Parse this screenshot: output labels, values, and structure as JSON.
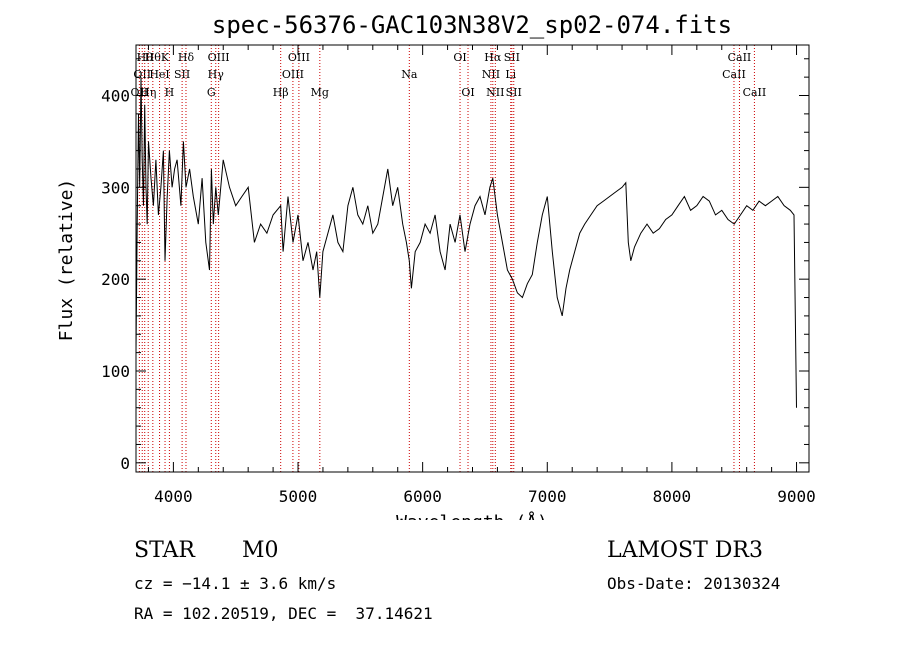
{
  "chart_data": {
    "type": "line",
    "title": "spec-56376-GAC103N38V2_sp02-074.fits",
    "xlabel": "Wavelength (Å)",
    "ylabel": "Flux (relative)",
    "xlim": [
      3700,
      9100
    ],
    "ylim": [
      -10,
      455
    ],
    "x_ticks": [
      4000,
      5000,
      6000,
      7000,
      8000,
      9000
    ],
    "y_ticks": [
      0,
      100,
      200,
      300,
      400
    ],
    "x_tick_labels": [
      "4000",
      "5000",
      "6000",
      "7000",
      "8000",
      "9000"
    ],
    "y_tick_labels": [
      "0",
      "100",
      "200",
      "300",
      "400"
    ],
    "grid": false,
    "line_color": "#000000",
    "marker_color": "#cc0000",
    "series": [
      {
        "x": [
          3700,
          3710,
          3720,
          3730,
          3740,
          3750,
          3760,
          3770,
          3780,
          3790,
          3800,
          3820,
          3840,
          3860,
          3880,
          3900,
          3920,
          3933,
          3950,
          3968,
          3990,
          4010,
          4030,
          4060,
          4080,
          4101,
          4130,
          4160,
          4200,
          4230,
          4260,
          4290,
          4305,
          4320,
          4340,
          4360,
          4400,
          4450,
          4500,
          4550,
          4600,
          4650,
          4700,
          4750,
          4800,
          4861,
          4880,
          4920,
          4960,
          5000,
          5040,
          5080,
          5120,
          5150,
          5175,
          5200,
          5240,
          5280,
          5320,
          5360,
          5400,
          5440,
          5480,
          5520,
          5560,
          5600,
          5640,
          5680,
          5720,
          5760,
          5800,
          5840,
          5870,
          5893,
          5910,
          5940,
          5980,
          6020,
          6060,
          6100,
          6140,
          6180,
          6220,
          6260,
          6300,
          6340,
          6380,
          6420,
          6460,
          6500,
          6540,
          6563,
          6600,
          6640,
          6680,
          6720,
          6760,
          6800,
          6840,
          6880,
          6920,
          6960,
          7000,
          7040,
          7080,
          7120,
          7150,
          7180,
          7220,
          7260,
          7300,
          7350,
          7400,
          7450,
          7500,
          7550,
          7600,
          7630,
          7650,
          7670,
          7700,
          7750,
          7800,
          7850,
          7900,
          7950,
          8000,
          8050,
          8100,
          8150,
          8200,
          8250,
          8300,
          8350,
          8400,
          8450,
          8500,
          8550,
          8600,
          8650,
          8700,
          8750,
          8800,
          8850,
          8900,
          8950,
          8980,
          9000
        ],
        "y": [
          120,
          260,
          380,
          300,
          420,
          330,
          280,
          390,
          300,
          260,
          350,
          310,
          280,
          330,
          270,
          300,
          340,
          220,
          290,
          340,
          300,
          320,
          330,
          280,
          350,
          300,
          320,
          290,
          260,
          310,
          240,
          210,
          320,
          260,
          300,
          270,
          330,
          300,
          280,
          290,
          300,
          240,
          260,
          250,
          270,
          280,
          230,
          290,
          240,
          270,
          220,
          240,
          210,
          230,
          180,
          230,
          250,
          270,
          240,
          230,
          280,
          300,
          270,
          260,
          280,
          250,
          260,
          290,
          320,
          280,
          300,
          260,
          240,
          220,
          190,
          230,
          240,
          260,
          250,
          270,
          230,
          210,
          260,
          240,
          270,
          230,
          260,
          280,
          290,
          270,
          300,
          310,
          270,
          240,
          210,
          200,
          185,
          180,
          195,
          205,
          240,
          270,
          290,
          230,
          180,
          160,
          190,
          210,
          230,
          250,
          260,
          270,
          280,
          285,
          290,
          295,
          300,
          305,
          240,
          220,
          235,
          250,
          260,
          250,
          255,
          265,
          270,
          280,
          290,
          275,
          280,
          290,
          285,
          270,
          275,
          265,
          260,
          270,
          280,
          275,
          285,
          280,
          285,
          290,
          280,
          275,
          270,
          60
        ]
      }
    ],
    "line_markers": [
      {
        "x": 3727,
        "label": "OII",
        "row": 3
      },
      {
        "x": 3750,
        "label": "OII",
        "row": 2
      },
      {
        "x": 3770,
        "label": "Hθ",
        "row": 1
      },
      {
        "x": 3798,
        "label": "Hη",
        "row": 3
      },
      {
        "x": 3835,
        "label": "Hθ",
        "row": 1
      },
      {
        "x": 3889,
        "label": "HeI",
        "row": 2
      },
      {
        "x": 3933,
        "label": "K",
        "row": 1
      },
      {
        "x": 3968,
        "label": "H",
        "row": 3
      },
      {
        "x": 4070,
        "label": "SII",
        "row": 2
      },
      {
        "x": 4101,
        "label": "Hδ",
        "row": 1
      },
      {
        "x": 4304,
        "label": "G",
        "row": 3
      },
      {
        "x": 4340,
        "label": "Hγ",
        "row": 2
      },
      {
        "x": 4363,
        "label": "OIII",
        "row": 1
      },
      {
        "x": 4861,
        "label": "Hβ",
        "row": 3
      },
      {
        "x": 4959,
        "label": "OIII",
        "row": 2
      },
      {
        "x": 5007,
        "label": "OIII",
        "row": 1
      },
      {
        "x": 5175,
        "label": "Mg",
        "row": 3
      },
      {
        "x": 5893,
        "label": "Na",
        "row": 2
      },
      {
        "x": 6300,
        "label": "OI",
        "row": 1
      },
      {
        "x": 6364,
        "label": "OI",
        "row": 3
      },
      {
        "x": 6548,
        "label": "NII",
        "row": 2
      },
      {
        "x": 6563,
        "label": "Hα",
        "row": 1
      },
      {
        "x": 6583,
        "label": "NII",
        "row": 3
      },
      {
        "x": 6707,
        "label": "Li",
        "row": 2
      },
      {
        "x": 6716,
        "label": "SII",
        "row": 1
      },
      {
        "x": 6731,
        "label": "SII",
        "row": 3
      },
      {
        "x": 8498,
        "label": "CaII",
        "row": 2
      },
      {
        "x": 8542,
        "label": "CaII",
        "row": 1
      },
      {
        "x": 8662,
        "label": "CaII",
        "row": 3
      }
    ]
  },
  "info": {
    "class": "STAR",
    "subclass": "M0",
    "survey": "LAMOST DR3",
    "cz": "cz = −14.1 ± 3.6 km/s",
    "obs_date": "Obs-Date: 20130324",
    "coords": "RA = 102.20519, DEC =  37.14621"
  }
}
